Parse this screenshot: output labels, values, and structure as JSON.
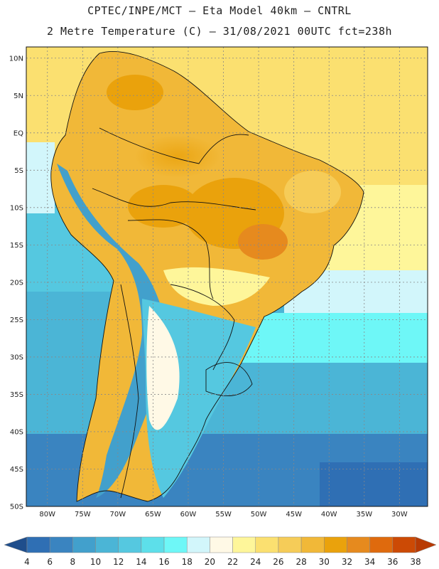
{
  "header": {
    "line1": "CPTEC/INPE/MCT  –  Eta Model 40km  –  CNTRL",
    "line2": "2 Metre Temperature (C) – 31/08/2021 00UTC fct=238h"
  },
  "map": {
    "lat_ticks": [
      "10N",
      "5N",
      "EQ",
      "5S",
      "10S",
      "15S",
      "20S",
      "25S",
      "30S",
      "35S",
      "40S",
      "45S",
      "50S"
    ],
    "lon_ticks": [
      "80W",
      "75W",
      "70W",
      "65W",
      "60W",
      "55W",
      "50W",
      "45W",
      "40W",
      "35W",
      "30W"
    ],
    "lat_range": [
      11.5,
      -50
    ],
    "lon_range": [
      -83,
      -26
    ]
  },
  "colorbar": {
    "labels": [
      "4",
      "6",
      "8",
      "10",
      "12",
      "14",
      "16",
      "18",
      "20",
      "22",
      "24",
      "26",
      "28",
      "30",
      "32",
      "34",
      "36",
      "38"
    ],
    "colors": [
      "#1f4e8c",
      "#2f6fb4",
      "#3a84c0",
      "#42a0cc",
      "#4bb5d6",
      "#55c8e0",
      "#5ddfea",
      "#6ef7f7",
      "#d2f6fb",
      "#fff9e6",
      "#fef69a",
      "#fbe070",
      "#f6cc58",
      "#f1b838",
      "#eaa20c",
      "#e68a1e",
      "#df6a0d",
      "#cc4a05",
      "#b83a03"
    ]
  }
}
